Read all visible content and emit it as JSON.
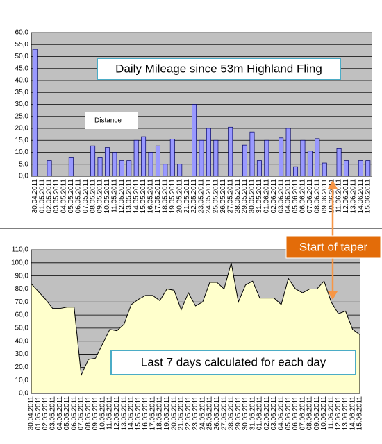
{
  "annotation": "Start of taper",
  "chart_data": [
    {
      "type": "bar",
      "title": "Daily Mileage since 53m Highland Fling",
      "categories": [
        "30.04.2011",
        "01.05.2011",
        "02.05.2011",
        "03.05.2011",
        "04.05.2011",
        "05.05.2011",
        "06.05.2011",
        "07.05.2011",
        "08.05.2011",
        "09.05.2011",
        "10.05.2011",
        "11.05.2011",
        "12.05.2011",
        "13.05.2011",
        "14.05.2011",
        "15.05.2011",
        "16.05.2011",
        "17.05.2011",
        "18.05.2011",
        "19.05.2011",
        "20.05.2011",
        "21.05.2011",
        "22.05.2011",
        "23.05.2011",
        "24.05.2011",
        "25.05.2011",
        "26.05.2011",
        "27.05.2011",
        "28.05.2011",
        "29.05.2011",
        "30.05.2011",
        "31.05.2011",
        "01.06.2011",
        "02.06.2011",
        "03.06.2011",
        "04.06.2011",
        "05.06.2011",
        "06.06.2011",
        "07.06.2011",
        "08.06.2011",
        "09.06.2011",
        "10.06.2011",
        "11.06.2011",
        "12.06.2011",
        "13.06.2011",
        "14.06.2011",
        "15.06.2011"
      ],
      "series": [
        {
          "name": "Distance",
          "color": "#9999ff",
          "values": [
            53,
            0,
            6.5,
            0,
            0,
            7.7,
            0,
            0,
            12.7,
            7.7,
            12,
            10,
            6.5,
            6.5,
            15,
            16.5,
            10,
            12.7,
            5,
            15.5,
            5,
            0,
            30,
            15,
            20,
            15,
            0,
            20.5,
            0,
            13,
            18.5,
            6.5,
            15,
            0,
            16,
            20,
            4,
            15,
            10.5,
            15.7,
            5.5,
            0,
            11.5,
            6.5,
            0,
            6.5,
            6.5
          ]
        }
      ],
      "ylim": [
        0,
        60
      ],
      "yticks": [
        {
          "value": 0,
          "label": "0,0"
        },
        {
          "value": 5,
          "label": "5,0"
        },
        {
          "value": 10,
          "label": "10,0"
        },
        {
          "value": 15,
          "label": "15,0"
        },
        {
          "value": 20,
          "label": "20,0"
        },
        {
          "value": 25,
          "label": "25,0"
        },
        {
          "value": 30,
          "label": "30,0"
        },
        {
          "value": 35,
          "label": "35,0"
        },
        {
          "value": 40,
          "label": "40,0"
        },
        {
          "value": 45,
          "label": "45,0"
        },
        {
          "value": 50,
          "label": "50,0"
        },
        {
          "value": 55,
          "label": "55,0"
        },
        {
          "value": 60,
          "label": "60,0"
        }
      ],
      "grid": true
    },
    {
      "type": "area",
      "annotation": "Last 7 days calculated for each day",
      "categories": [
        "30.04.2011",
        "01.05.2011",
        "02.05.2011",
        "03.05.2011",
        "04.05.2011",
        "05.05.2011",
        "06.05.2011",
        "07.05.2011",
        "08.05.2011",
        "09.05.2011",
        "10.05.2011",
        "11.05.2011",
        "12.05.2011",
        "13.05.2011",
        "14.05.2011",
        "15.05.2011",
        "16.05.2011",
        "17.05.2011",
        "18.05.2011",
        "19.05.2011",
        "20.05.2011",
        "21.05.2011",
        "22.05.2011",
        "23.05.2011",
        "24.05.2011",
        "25.05.2011",
        "26.05.2011",
        "27.05.2011",
        "28.05.2011",
        "29.05.2011",
        "30.05.2011",
        "31.05.2011",
        "01.06.2011",
        "02.06.2011",
        "03.06.2011",
        "04.06.2011",
        "05.06.2011",
        "06.06.2011",
        "07.06.2011",
        "08.06.2011",
        "09.06.2011",
        "10.06.2011",
        "11.06.2011",
        "12.06.2011",
        "13.06.2011",
        "14.06.2011",
        "15.06.2011"
      ],
      "values": [
        84,
        78,
        72,
        65,
        65,
        66,
        66,
        14,
        26,
        27,
        38,
        49,
        48,
        53,
        68,
        72,
        75,
        75,
        71,
        80,
        79,
        64,
        77,
        67,
        70,
        85,
        85,
        80,
        100,
        70,
        83,
        86,
        73,
        73,
        73,
        68,
        88,
        80,
        77,
        80,
        80,
        86,
        70,
        61,
        63,
        49,
        45
      ],
      "color": "#ffffcc",
      "ylim": [
        0,
        110
      ],
      "yticks": [
        {
          "value": 0,
          "label": "0,0"
        },
        {
          "value": 10,
          "label": "10,0"
        },
        {
          "value": 20,
          "label": "20,0"
        },
        {
          "value": 30,
          "label": "30,0"
        },
        {
          "value": 40,
          "label": "40,0"
        },
        {
          "value": 50,
          "label": "50,0"
        },
        {
          "value": 60,
          "label": "60,0"
        },
        {
          "value": 70,
          "label": "70,0"
        },
        {
          "value": 80,
          "label": "80,0"
        },
        {
          "value": 90,
          "label": "90,0"
        },
        {
          "value": 100,
          "label": "100,0"
        },
        {
          "value": 110,
          "label": "110,0"
        }
      ],
      "grid": true
    }
  ]
}
